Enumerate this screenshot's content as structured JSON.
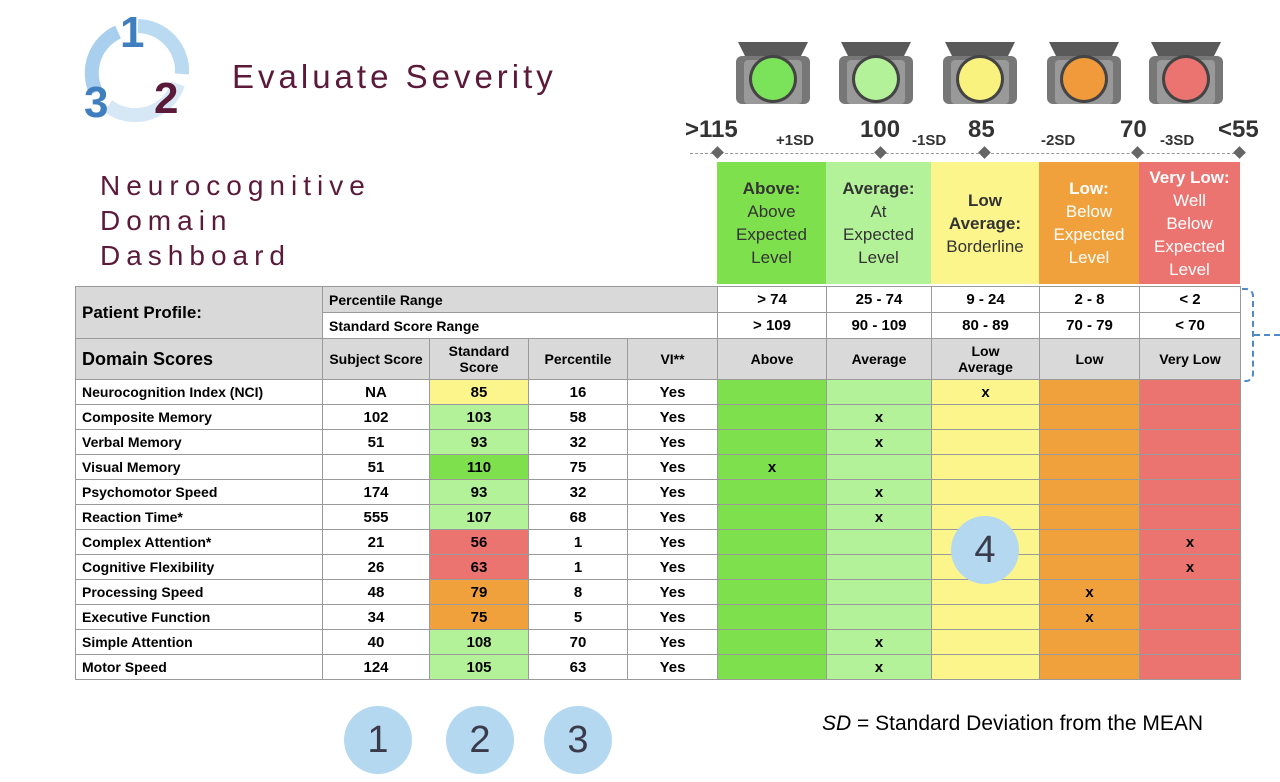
{
  "logo": {
    "numbers": [
      "1",
      "2",
      "3"
    ]
  },
  "title": "Evaluate Severity",
  "dashboard_title": [
    "Neurocognitive",
    "Domain",
    "Dashboard"
  ],
  "colors": {
    "above": "#7fe04e",
    "average": "#b4f29a",
    "low_average": "#fbf58c",
    "low": "#f0a13c",
    "very_low": "#ec7470",
    "accent": "#5c1a3a",
    "bubble": "#b3d8f0"
  },
  "lights": [
    {
      "color": "#7be35a",
      "icon": "traffic-light-green-icon"
    },
    {
      "color": "#b4f29a",
      "icon": "traffic-light-light-green-icon"
    },
    {
      "color": "#f9f27f",
      "icon": "traffic-light-yellow-icon"
    },
    {
      "color": "#f09a3c",
      "icon": "traffic-light-orange-icon"
    },
    {
      "color": "#ec7470",
      "icon": "traffic-light-red-icon"
    }
  ],
  "scale": {
    "thresholds": [
      ">115",
      "100",
      "85",
      "70",
      "<55"
    ],
    "sd_labels": [
      "+1SD",
      "-1SD",
      "-2SD",
      "-3SD"
    ]
  },
  "bands": [
    {
      "bold": "Above:",
      "text": [
        "Above",
        "Expected",
        "Level"
      ]
    },
    {
      "bold": "Average:",
      "text": [
        "At",
        "Expected",
        "Level"
      ]
    },
    {
      "bold": "Low Average:",
      "text": [
        "Borderline"
      ]
    },
    {
      "bold": "Low:",
      "text": [
        "Below",
        "Expected",
        "Level"
      ]
    },
    {
      "bold": "Very Low:",
      "text": [
        "Well",
        "Below",
        "Expected",
        "Level"
      ]
    }
  ],
  "profile": {
    "label": "Patient Profile:",
    "percentile_label": "Percentile Range",
    "standard_label": "Standard Score Range",
    "percentile_ranges": [
      "> 74",
      "25 - 74",
      "9 - 24",
      "2 - 8",
      "< 2"
    ],
    "standard_ranges": [
      "> 109",
      "90 - 109",
      "80 - 89",
      "70 - 79",
      "< 70"
    ]
  },
  "header": {
    "domain_scores": "Domain Scores",
    "subject_score": "Subject Score",
    "standard_score": "Standard Score",
    "percentile": "Percentile",
    "vi": "VI**",
    "categories": [
      "Above",
      "Average",
      "Low Average",
      "Low",
      "Very Low"
    ]
  },
  "rows": [
    {
      "name": "Neurocognition Index (NCI)",
      "subject": "NA",
      "standard": "85",
      "percentile": "16",
      "vi": "Yes",
      "band": 2
    },
    {
      "name": "Composite Memory",
      "subject": "102",
      "standard": "103",
      "percentile": "58",
      "vi": "Yes",
      "band": 1
    },
    {
      "name": "Verbal Memory",
      "subject": "51",
      "standard": "93",
      "percentile": "32",
      "vi": "Yes",
      "band": 1
    },
    {
      "name": "Visual Memory",
      "subject": "51",
      "standard": "110",
      "percentile": "75",
      "vi": "Yes",
      "band": 0
    },
    {
      "name": "Psychomotor Speed",
      "subject": "174",
      "standard": "93",
      "percentile": "32",
      "vi": "Yes",
      "band": 1
    },
    {
      "name": "Reaction Time*",
      "subject": "555",
      "standard": "107",
      "percentile": "68",
      "vi": "Yes",
      "band": 1
    },
    {
      "name": "Complex Attention*",
      "subject": "21",
      "standard": "56",
      "percentile": "1",
      "vi": "Yes",
      "band": 4
    },
    {
      "name": "Cognitive Flexibility",
      "subject": "26",
      "standard": "63",
      "percentile": "1",
      "vi": "Yes",
      "band": 4
    },
    {
      "name": "Processing Speed",
      "subject": "48",
      "standard": "79",
      "percentile": "8",
      "vi": "Yes",
      "band": 3
    },
    {
      "name": "Executive Function",
      "subject": "34",
      "standard": "75",
      "percentile": "5",
      "vi": "Yes",
      "band": 3
    },
    {
      "name": "Simple Attention",
      "subject": "40",
      "standard": "108",
      "percentile": "70",
      "vi": "Yes",
      "band": 1
    },
    {
      "name": "Motor Speed",
      "subject": "124",
      "standard": "105",
      "percentile": "63",
      "vi": "Yes",
      "band": 1
    }
  ],
  "mark": "x",
  "bubbles": [
    "1",
    "2",
    "3",
    "4"
  ],
  "sd_note": {
    "abbr": "SD",
    "text": " = Standard Deviation from the MEAN"
  }
}
